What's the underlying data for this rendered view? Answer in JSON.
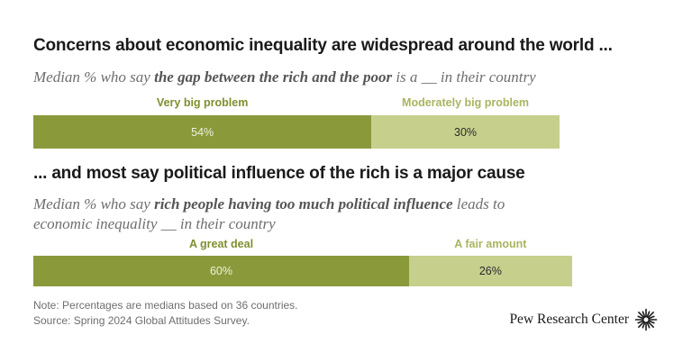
{
  "colors": {
    "primary": "#8a9a3b",
    "secondary": "#c7cf8c",
    "primary_text": "#7f8f2f",
    "secondary_text": "#aab45f"
  },
  "chart_data": [
    {
      "type": "bar",
      "orientation": "horizontal",
      "stacked": true,
      "title": "Concerns about economic inequality are widespread around the world ...",
      "subtitle_parts": [
        "Median % who say ",
        "the gap between the rich and the poor",
        " is a __ in their country"
      ],
      "ylim": [
        0,
        100
      ],
      "series": [
        {
          "name": "Very big problem",
          "values": [
            54
          ],
          "label": "54%"
        },
        {
          "name": "Moderately big problem",
          "values": [
            30
          ],
          "label": "30%"
        }
      ]
    },
    {
      "type": "bar",
      "orientation": "horizontal",
      "stacked": true,
      "title": "... and most say political influence of the rich is a major cause",
      "subtitle_parts": [
        "Median % who say ",
        "rich people having too much political influence",
        " leads to",
        "economic inequality __ in their country"
      ],
      "ylim": [
        0,
        100
      ],
      "series": [
        {
          "name": "A great deal",
          "values": [
            60
          ],
          "label": "60%"
        },
        {
          "name": "A fair amount",
          "values": [
            26
          ],
          "label": "26%"
        }
      ]
    }
  ],
  "footer": {
    "note": "Note: Percentages are medians based on 36 countries.",
    "source": "Source: Spring 2024 Global Attitudes Survey.",
    "brand": "Pew Research Center"
  }
}
